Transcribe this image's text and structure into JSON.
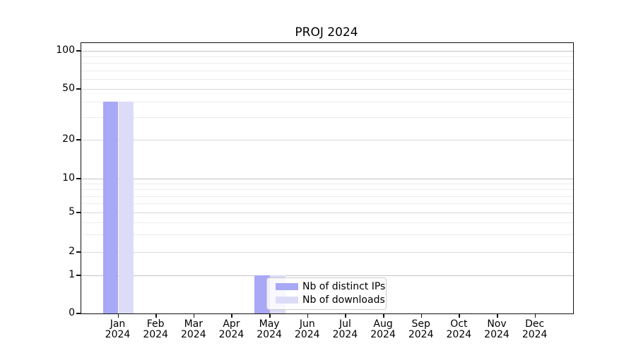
{
  "title": "PROJ 2024",
  "chart_data": {
    "type": "bar",
    "title": "PROJ 2024",
    "categories": [
      "Jan 2024",
      "Feb 2024",
      "Mar 2024",
      "Apr 2024",
      "May 2024",
      "Jun 2024",
      "Jul 2024",
      "Aug 2024",
      "Sep 2024",
      "Oct 2024",
      "Nov 2024",
      "Dec 2024"
    ],
    "series": [
      {
        "name": "Nb of distinct IPs",
        "color": "#a8a8f6",
        "values": [
          40,
          0,
          0,
          0,
          1,
          0,
          0,
          0,
          0,
          0,
          0,
          0
        ]
      },
      {
        "name": "Nb of downloads",
        "color": "#dcdcf9",
        "values": [
          40,
          0,
          0,
          0,
          1,
          0,
          0,
          0,
          0,
          0,
          0,
          0
        ]
      }
    ],
    "xlabel": "",
    "ylabel": "",
    "y_axis": {
      "scale": "log",
      "tick_labels": [
        "100",
        "50",
        "20",
        "10",
        "5",
        "2",
        "1",
        "0"
      ],
      "ticks": [
        100,
        50,
        20,
        10,
        5,
        2,
        1,
        0
      ],
      "strong_gridline_values": [
        100,
        10,
        1
      ],
      "major_gridline_values": [
        50,
        20,
        5,
        2
      ],
      "minor_gridline_values": [
        90,
        80,
        70,
        60,
        40,
        30,
        9,
        8,
        7,
        6,
        4,
        3
      ]
    },
    "legend": {
      "position": "inside-lower-middle",
      "entries": [
        "Nb of distinct IPs",
        "Nb of downloads"
      ]
    },
    "grid": true,
    "colors": {
      "strong_grid": "#c3c3c3",
      "major_grid": "#dadada",
      "minor_grid": "#ededed",
      "axis": "#111111",
      "text": "#000000",
      "legend_border": "#cccccc"
    }
  }
}
